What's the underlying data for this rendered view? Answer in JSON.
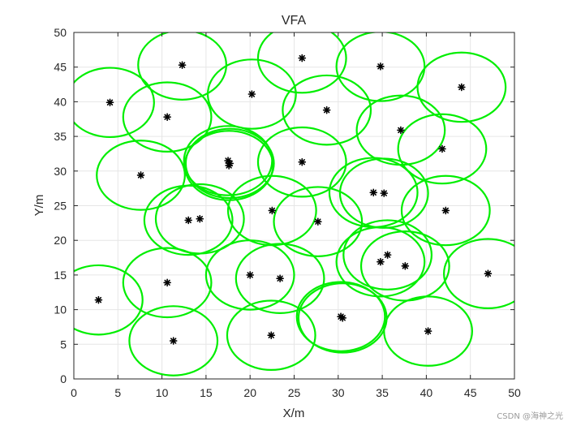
{
  "chart_data": {
    "type": "scatter",
    "title": "VFA",
    "xlabel": "X/m",
    "ylabel": "Y/m",
    "xlim": [
      0,
      50
    ],
    "ylim": [
      0,
      50
    ],
    "xticks": [
      0,
      5,
      10,
      15,
      20,
      25,
      30,
      35,
      40,
      45,
      50
    ],
    "yticks": [
      0,
      5,
      10,
      15,
      20,
      25,
      30,
      35,
      40,
      45,
      50
    ],
    "grid": true,
    "marker": "asterisk",
    "sensing_radius": 5,
    "colors": {
      "circle": "#00ee00",
      "marker": "#000000",
      "grid": "#e6e6e6",
      "axis": "#262626"
    },
    "points": [
      {
        "x": 2.8,
        "y": 11.4
      },
      {
        "x": 4.1,
        "y": 39.9
      },
      {
        "x": 7.6,
        "y": 29.4
      },
      {
        "x": 10.6,
        "y": 13.9
      },
      {
        "x": 10.6,
        "y": 37.8
      },
      {
        "x": 11.3,
        "y": 5.5
      },
      {
        "x": 12.3,
        "y": 45.3
      },
      {
        "x": 13.0,
        "y": 22.9
      },
      {
        "x": 14.3,
        "y": 23.1
      },
      {
        "x": 17.5,
        "y": 31.5
      },
      {
        "x": 17.6,
        "y": 30.8
      },
      {
        "x": 17.7,
        "y": 31.1
      },
      {
        "x": 20.0,
        "y": 15.0
      },
      {
        "x": 20.2,
        "y": 41.1
      },
      {
        "x": 22.4,
        "y": 6.3
      },
      {
        "x": 22.5,
        "y": 24.3
      },
      {
        "x": 23.4,
        "y": 14.5
      },
      {
        "x": 25.9,
        "y": 31.3
      },
      {
        "x": 25.9,
        "y": 46.3
      },
      {
        "x": 27.7,
        "y": 22.7
      },
      {
        "x": 28.7,
        "y": 38.8
      },
      {
        "x": 30.3,
        "y": 9.0
      },
      {
        "x": 30.5,
        "y": 8.8
      },
      {
        "x": 34.0,
        "y": 26.9
      },
      {
        "x": 34.8,
        "y": 16.9
      },
      {
        "x": 34.8,
        "y": 45.1
      },
      {
        "x": 35.2,
        "y": 26.8
      },
      {
        "x": 35.6,
        "y": 17.9
      },
      {
        "x": 37.1,
        "y": 35.9
      },
      {
        "x": 37.6,
        "y": 16.3
      },
      {
        "x": 40.2,
        "y": 6.9
      },
      {
        "x": 41.8,
        "y": 33.2
      },
      {
        "x": 42.2,
        "y": 24.3
      },
      {
        "x": 44.0,
        "y": 42.1
      },
      {
        "x": 47.0,
        "y": 15.2
      }
    ]
  },
  "watermark": "CSDN @海神之光"
}
